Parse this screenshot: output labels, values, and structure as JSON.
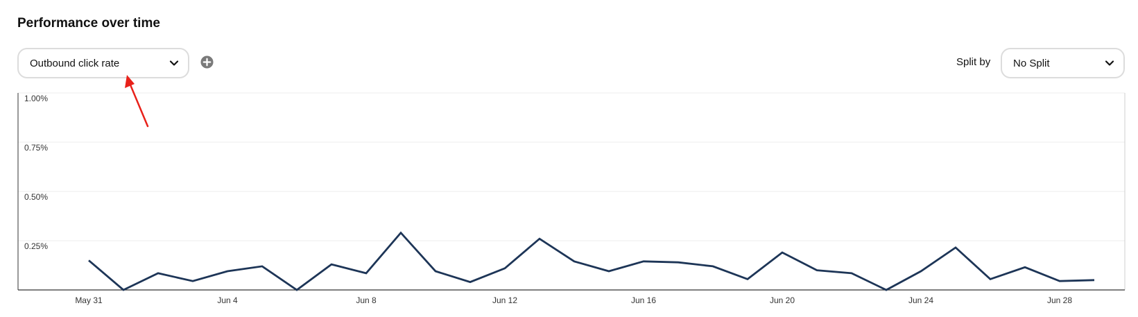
{
  "header": {
    "title": "Performance over time"
  },
  "controls": {
    "metric": {
      "selected": "Outbound click rate",
      "icon": "chevron-down-icon"
    },
    "add_metric": {
      "icon": "plus-circle-icon"
    },
    "split": {
      "label": "Split by",
      "selected": "No Split",
      "icon": "chevron-down-icon"
    }
  },
  "annotation": {
    "icon": "red-arrow-icon",
    "color": "#e8211a"
  },
  "chart_data": {
    "type": "line",
    "title": "",
    "xlabel": "",
    "ylabel": "",
    "ylim": [
      0,
      1.0
    ],
    "y_unit": "%",
    "y_ticks": [
      "1.00%",
      "0.75%",
      "0.50%",
      "0.25%"
    ],
    "y_tick_values": [
      1.0,
      0.75,
      0.5,
      0.25
    ],
    "x_tick_labels": [
      "May 31",
      "Jun 4",
      "Jun 8",
      "Jun 12",
      "Jun 16",
      "Jun 20",
      "Jun 24",
      "Jun 28"
    ],
    "x_tick_values": [
      "2022-05-31",
      "2022-06-04",
      "2022-06-08",
      "2022-06-12",
      "2022-06-16",
      "2022-06-20",
      "2022-06-24",
      "2022-06-28"
    ],
    "grid": true,
    "line_color": "#1d3557",
    "series": [
      {
        "x": [
          "2022-05-31",
          "2022-06-01",
          "2022-06-02",
          "2022-06-03",
          "2022-06-04",
          "2022-06-05",
          "2022-06-06",
          "2022-06-07",
          "2022-06-08",
          "2022-06-09",
          "2022-06-10",
          "2022-06-11",
          "2022-06-12",
          "2022-06-13",
          "2022-06-14",
          "2022-06-15",
          "2022-06-16",
          "2022-06-17",
          "2022-06-18",
          "2022-06-19",
          "2022-06-20",
          "2022-06-21",
          "2022-06-22",
          "2022-06-23",
          "2022-06-24",
          "2022-06-25",
          "2022-06-26",
          "2022-06-27",
          "2022-06-28",
          "2022-06-29"
        ],
        "values": [
          0.15,
          0.0,
          0.085,
          0.045,
          0.095,
          0.12,
          0.0,
          0.13,
          0.085,
          0.29,
          0.095,
          0.04,
          0.11,
          0.26,
          0.145,
          0.095,
          0.145,
          0.14,
          0.12,
          0.055,
          0.19,
          0.1,
          0.085,
          0.0,
          0.095,
          0.215,
          0.055,
          0.115,
          0.045,
          0.05
        ]
      }
    ]
  }
}
